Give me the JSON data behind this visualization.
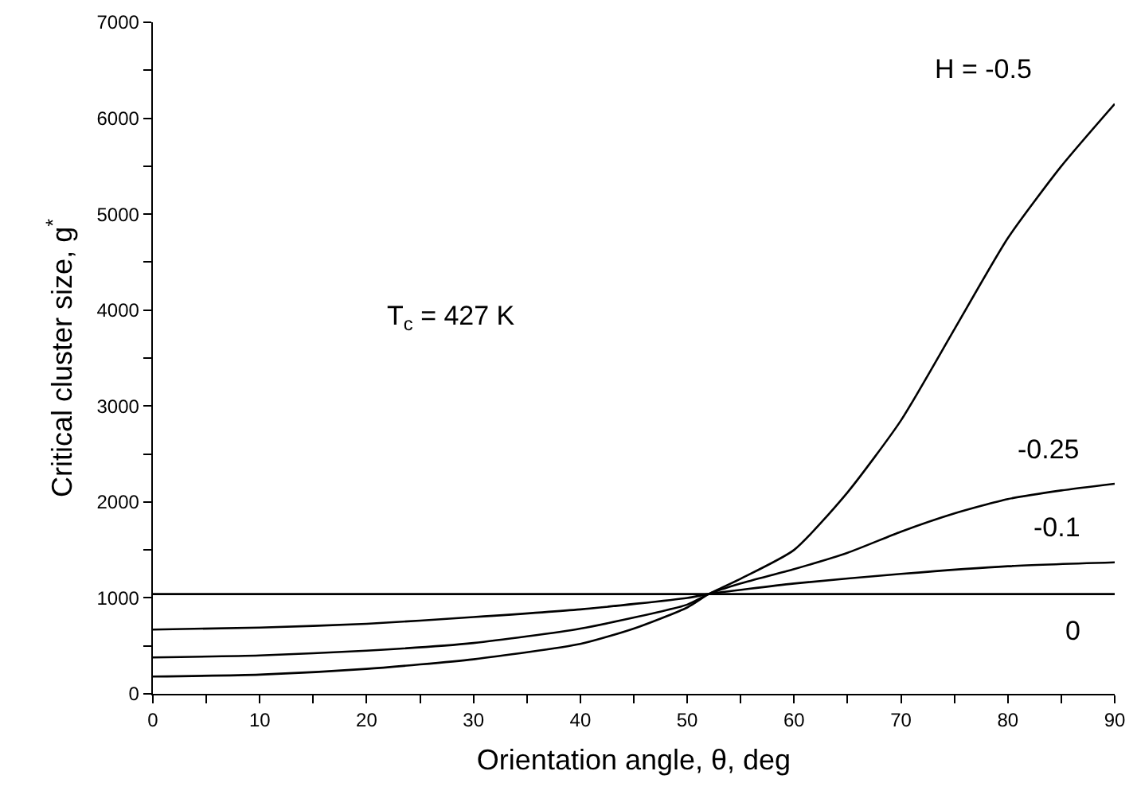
{
  "chart_data": {
    "type": "line",
    "xlabel": "Orientation angle, θ, deg",
    "ylabel": "Critical cluster size, g$^{*}$",
    "xlim": [
      0,
      90
    ],
    "ylim": [
      0,
      7000
    ],
    "xticks": [
      0,
      {
        "value": 5,
        "label": null
      },
      10,
      {
        "value": 15,
        "label": null
      },
      20,
      {
        "value": 25,
        "label": null
      },
      30,
      {
        "value": 35,
        "label": null
      },
      40,
      {
        "value": 45,
        "label": null
      },
      50,
      {
        "value": 55,
        "label": null
      },
      60,
      {
        "value": 65,
        "label": null
      },
      70,
      {
        "value": 75,
        "label": null
      },
      80,
      {
        "value": 85,
        "label": null
      },
      90
    ],
    "yticks": [
      0,
      {
        "value": 500,
        "label": null
      },
      1000,
      {
        "value": 1500,
        "label": null
      },
      2000,
      {
        "value": 2500,
        "label": null
      },
      3000,
      {
        "value": 3500,
        "label": null
      },
      4000,
      {
        "value": 4500,
        "label": null
      },
      5000,
      {
        "value": 5500,
        "label": null
      },
      6000,
      {
        "value": 6500,
        "label": null
      },
      7000
    ],
    "grid": false,
    "legend": false,
    "marker": "none",
    "line_style": "solid",
    "series": [
      {
        "name": "0",
        "color": "#000000",
        "x": [
          0,
          10,
          20,
          30,
          40,
          50,
          52,
          60,
          70,
          80,
          90
        ],
        "values": [
          1040,
          1040,
          1040,
          1040,
          1040,
          1040,
          1040,
          1040,
          1040,
          1040,
          1040
        ]
      },
      {
        "name": "-0.1",
        "color": "#000000",
        "x": [
          0,
          10,
          20,
          30,
          40,
          50,
          52,
          60,
          70,
          80,
          90
        ],
        "values": [
          670,
          690,
          730,
          800,
          880,
          1000,
          1040,
          1150,
          1250,
          1330,
          1370
        ]
      },
      {
        "name": "-0.25",
        "color": "#000000",
        "x": [
          0,
          10,
          20,
          30,
          40,
          50,
          52,
          55,
          60,
          65,
          70,
          75,
          80,
          85,
          90
        ],
        "values": [
          380,
          400,
          450,
          530,
          680,
          930,
          1040,
          1150,
          1300,
          1470,
          1690,
          1880,
          2030,
          2120,
          2190
        ]
      },
      {
        "name": "H = -0.5",
        "color": "#000000",
        "x": [
          0,
          10,
          20,
          30,
          40,
          45,
          50,
          52,
          55,
          60,
          65,
          70,
          75,
          80,
          85,
          90
        ],
        "values": [
          180,
          200,
          260,
          360,
          520,
          680,
          900,
          1040,
          1200,
          1500,
          2100,
          2850,
          3800,
          4750,
          5500,
          6150
        ]
      }
    ],
    "annotations": [
      "T$_{c}$ = 427 K"
    ]
  }
}
